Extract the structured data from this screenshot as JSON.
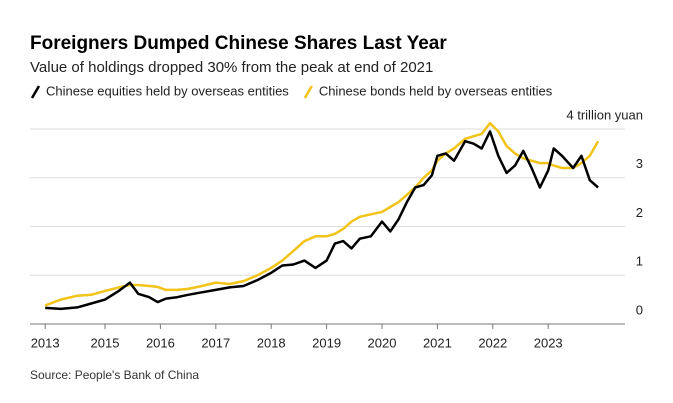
{
  "chart_data": {
    "type": "line",
    "title": "Foreigners Dumped Chinese Shares Last Year",
    "subtitle": "Value of holdings dropped 30% from the peak at end of 2021",
    "source": "Source: People's Bank of China",
    "x": [
      2013.92,
      2014.2,
      2014.5,
      2014.75,
      2015.0,
      2015.25,
      2015.45,
      2015.6,
      2015.8,
      2015.95,
      2016.1,
      2016.3,
      2016.5,
      2016.75,
      2017.0,
      2017.25,
      2017.5,
      2017.75,
      2018.0,
      2018.2,
      2018.4,
      2018.6,
      2018.8,
      2019.0,
      2019.15,
      2019.3,
      2019.45,
      2019.6,
      2019.8,
      2020.0,
      2020.15,
      2020.3,
      2020.45,
      2020.6,
      2020.75,
      2020.9,
      2021.0,
      2021.15,
      2021.3,
      2021.5,
      2021.65,
      2021.8,
      2021.95,
      2022.1,
      2022.25,
      2022.4,
      2022.55,
      2022.7,
      2022.85,
      2023.0,
      2023.1,
      2023.25,
      2023.45,
      2023.6,
      2023.75,
      2023.9
    ],
    "series": [
      {
        "name": "Chinese equities held by overseas entities",
        "color": "#000000",
        "values": [
          0.33,
          0.31,
          0.34,
          0.42,
          0.5,
          0.68,
          0.85,
          0.62,
          0.55,
          0.45,
          0.52,
          0.55,
          0.6,
          0.65,
          0.7,
          0.75,
          0.78,
          0.9,
          1.05,
          1.2,
          1.22,
          1.3,
          1.15,
          1.3,
          1.65,
          1.7,
          1.55,
          1.75,
          1.8,
          2.1,
          1.9,
          2.15,
          2.5,
          2.8,
          2.85,
          3.05,
          3.45,
          3.5,
          3.35,
          3.75,
          3.7,
          3.6,
          3.95,
          3.45,
          3.1,
          3.25,
          3.55,
          3.2,
          2.8,
          3.15,
          3.6,
          3.45,
          3.2,
          3.45,
          2.95,
          2.8
        ]
      },
      {
        "name": "Chinese bonds held by overseas entities",
        "color": "#f2c318",
        "values": [
          0.38,
          0.5,
          0.58,
          0.6,
          0.68,
          0.75,
          0.8,
          0.8,
          0.78,
          0.76,
          0.7,
          0.7,
          0.72,
          0.78,
          0.85,
          0.82,
          0.88,
          1.0,
          1.15,
          1.3,
          1.5,
          1.7,
          1.8,
          1.8,
          1.85,
          1.95,
          2.1,
          2.2,
          2.25,
          2.3,
          2.4,
          2.5,
          2.65,
          2.8,
          3.0,
          3.15,
          3.35,
          3.5,
          3.6,
          3.8,
          3.85,
          3.9,
          4.12,
          3.95,
          3.65,
          3.5,
          3.4,
          3.35,
          3.3,
          3.3,
          3.25,
          3.2,
          3.2,
          3.3,
          3.45,
          3.75
        ]
      }
    ],
    "xlim": [
      2013.7,
      2024.4
    ],
    "xticks": [
      {
        "value": 2013.92,
        "label": "2013"
      },
      2015,
      2016,
      2017,
      2018,
      2019,
      2020,
      2021,
      2022,
      2023
    ],
    "ylim": [
      0,
      4
    ],
    "yticks": [
      0,
      1,
      2,
      3,
      {
        "value": 4,
        "label": "4 trillion yuan"
      }
    ],
    "grid": true
  }
}
